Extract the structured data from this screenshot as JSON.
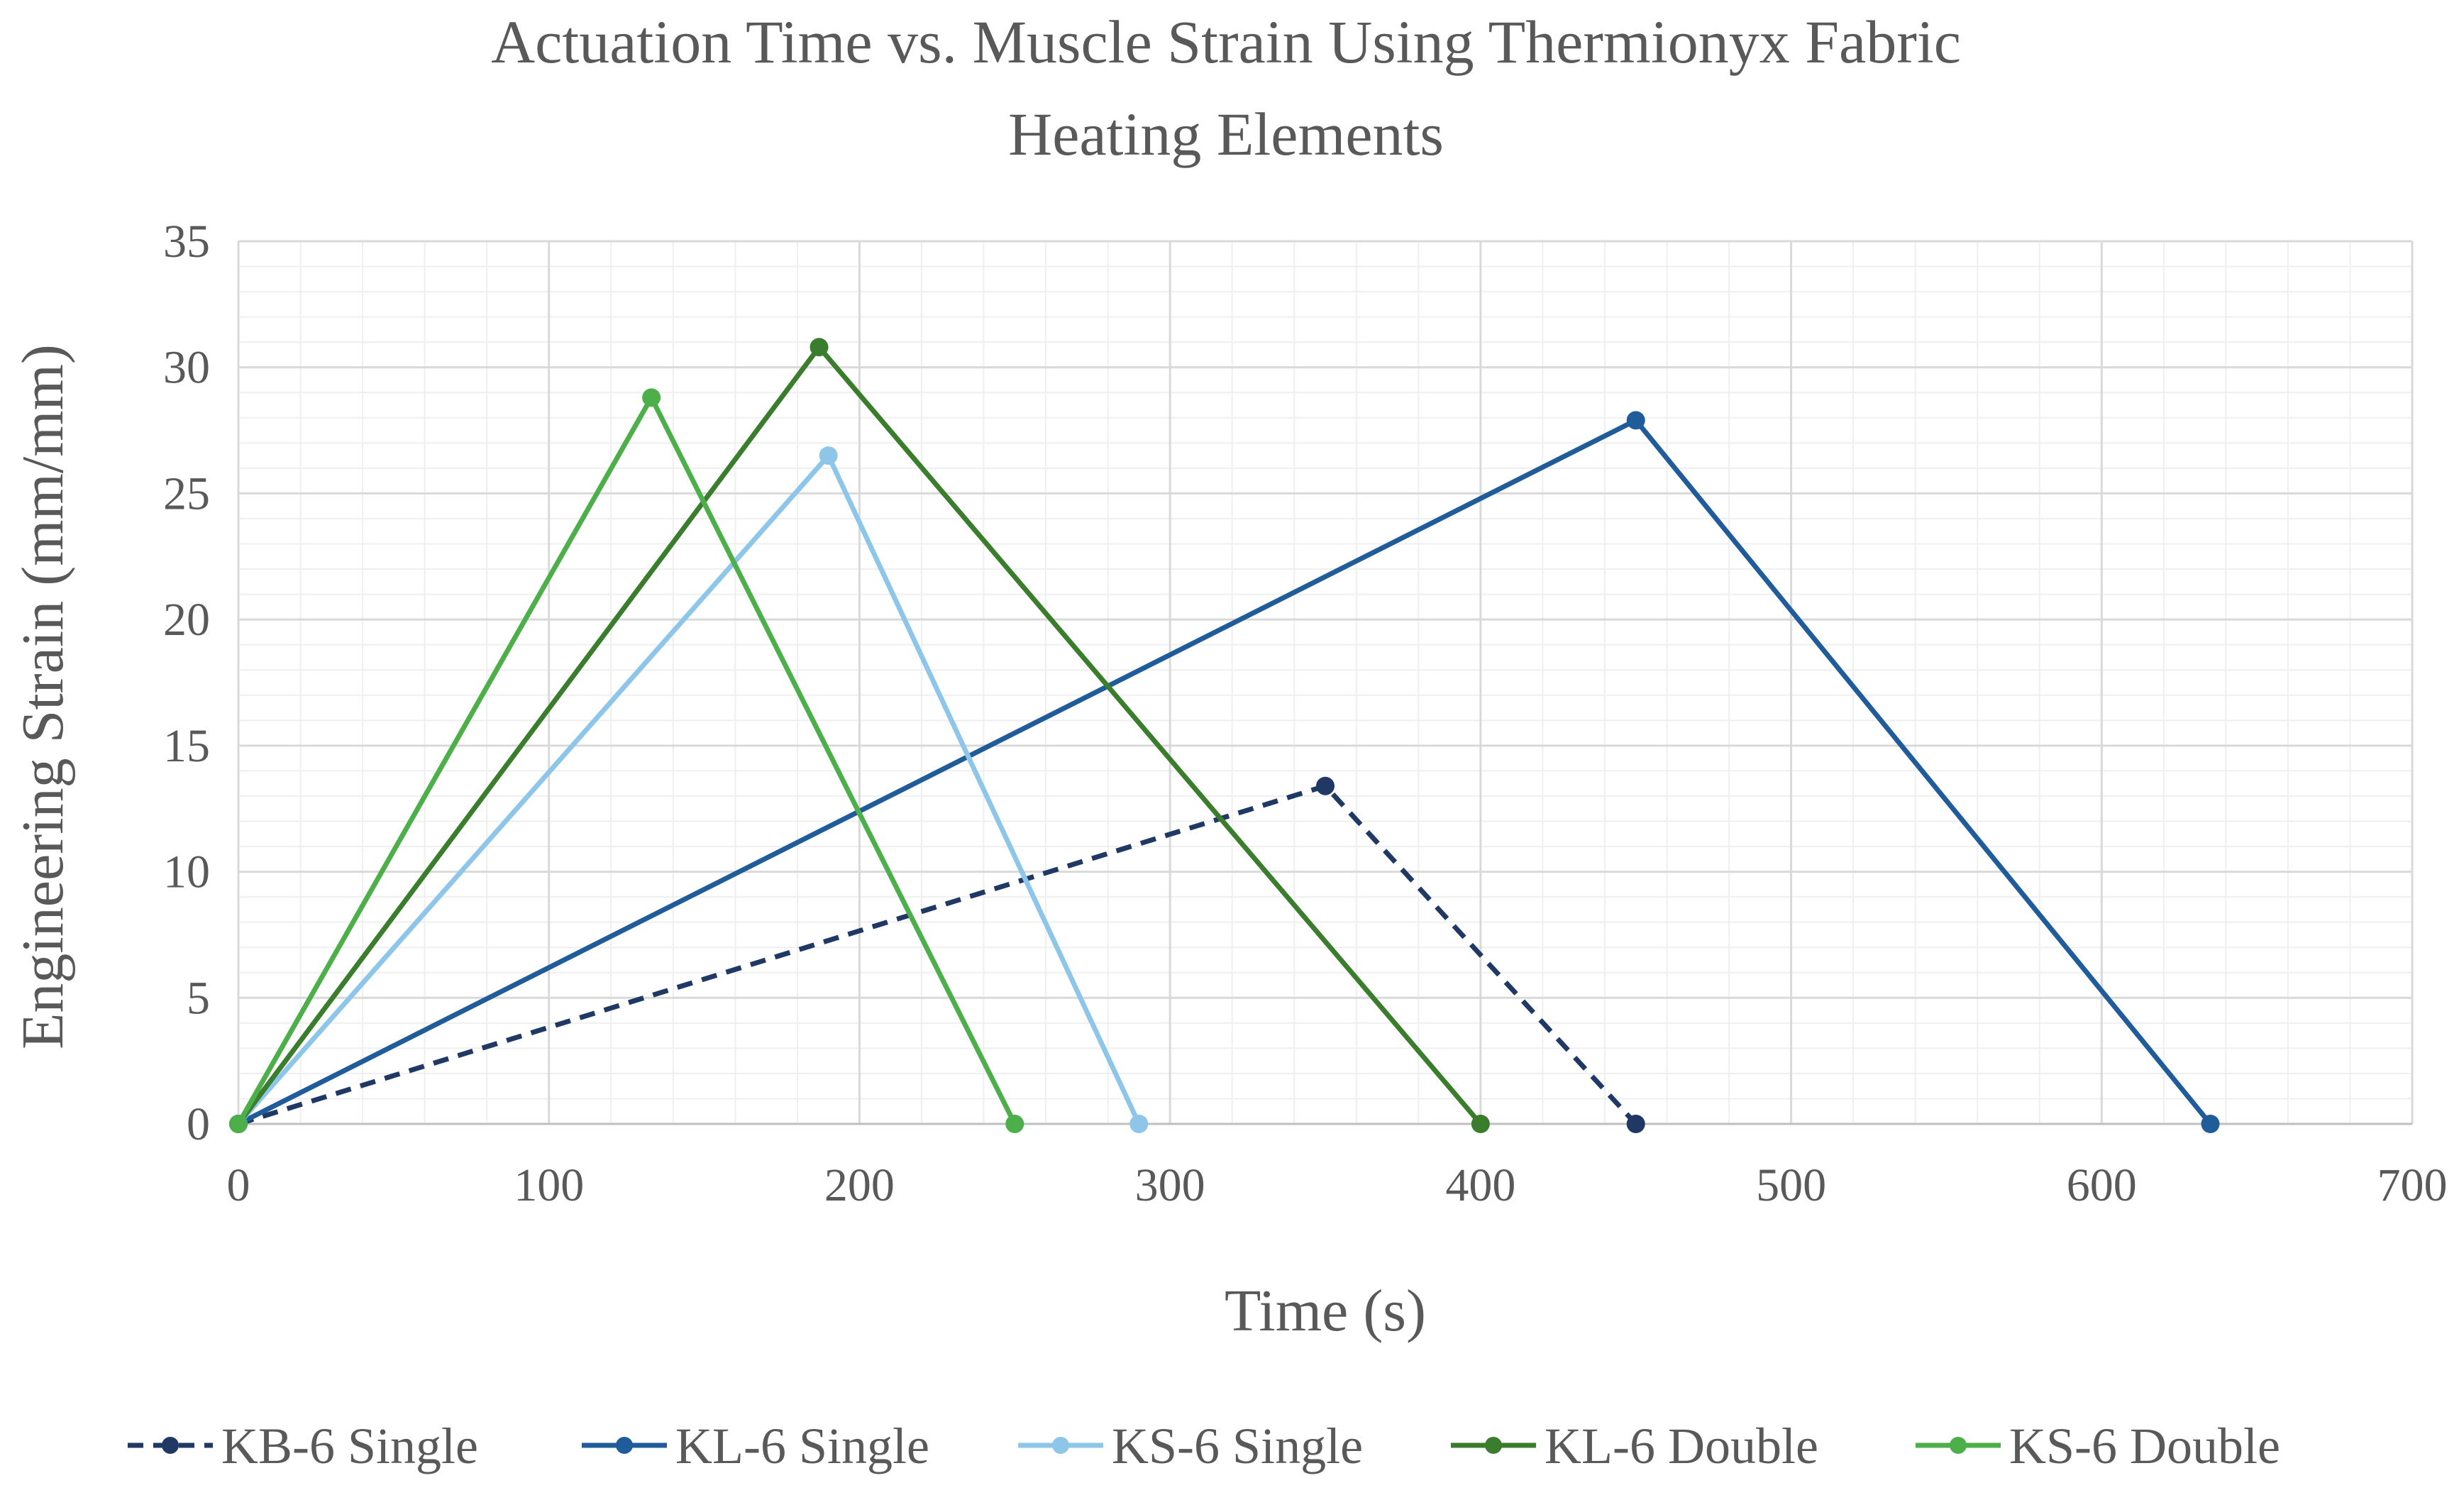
{
  "chart_data": {
    "type": "line",
    "title_lines": [
      "Actuation Time vs. Muscle Strain Using Thermionyx Fabric",
      "Heating Elements"
    ],
    "xlabel": "Time (s)",
    "ylabel": "Engineering Strain (mm/mm)",
    "xlim": [
      0,
      700
    ],
    "ylim": [
      0,
      35
    ],
    "x_ticks": [
      0,
      100,
      200,
      300,
      400,
      500,
      600,
      700
    ],
    "y_ticks": [
      0,
      5,
      10,
      15,
      20,
      25,
      30,
      35
    ],
    "x_tick_labels": [
      "0",
      "100",
      "200",
      "300",
      "400",
      "500",
      "600",
      "700"
    ],
    "y_tick_labels": [
      "0",
      "5",
      "10",
      "15",
      "20",
      "25",
      "30",
      "35"
    ],
    "grid": true,
    "minor_grid": true,
    "legend_position": "bottom",
    "series": [
      {
        "name": "KB-6 Single",
        "color": "#1F3864",
        "dashed": true,
        "points": [
          [
            0,
            0
          ],
          [
            350,
            13.4
          ],
          [
            450,
            0
          ]
        ]
      },
      {
        "name": "KL-6 Single",
        "color": "#1F5C99",
        "dashed": false,
        "points": [
          [
            0,
            0
          ],
          [
            450,
            27.9
          ],
          [
            635,
            0
          ]
        ]
      },
      {
        "name": "KS-6 Single",
        "color": "#8EC6EA",
        "dashed": false,
        "points": [
          [
            0,
            0
          ],
          [
            190,
            26.5
          ],
          [
            290,
            0
          ]
        ]
      },
      {
        "name": "KL-6 Double",
        "color": "#3A7D2C",
        "dashed": false,
        "points": [
          [
            0,
            0
          ],
          [
            187,
            30.8
          ],
          [
            400,
            0
          ]
        ]
      },
      {
        "name": "KS-6 Double",
        "color": "#4DAF4A",
        "dashed": false,
        "points": [
          [
            0,
            0
          ],
          [
            133,
            28.8
          ],
          [
            250,
            0
          ]
        ]
      }
    ]
  }
}
